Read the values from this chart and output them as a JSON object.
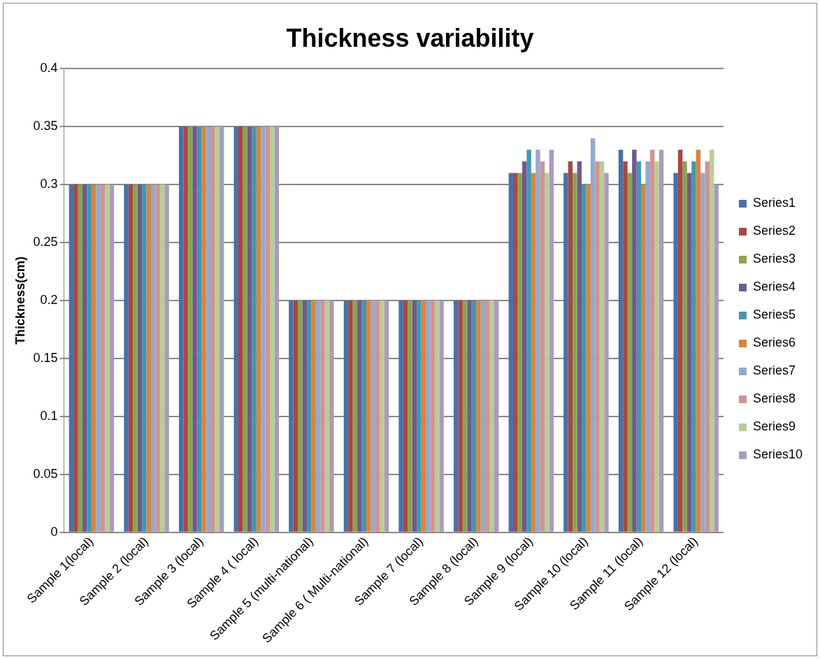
{
  "chart_data": {
    "type": "bar",
    "title": "Thickness variability",
    "ylabel": "Thickness(cm)",
    "categories": [
      "Sample 1(local)",
      "Sample 2 (local)",
      "Sample 3 (local)",
      "Sample 4 ( local)",
      "Sample 5 (multi-national)",
      "Sample 6 ( Multi-national)",
      "Sample 7 (local)",
      "Sample 8 (local)",
      "Sample 9 (local)",
      "Sample 10 (local)",
      "Sample 11 (local)",
      "Sample 12 (local)"
    ],
    "series": [
      {
        "name": "Series1",
        "color": "#4572a7",
        "values": [
          0.3,
          0.3,
          0.35,
          0.35,
          0.2,
          0.2,
          0.2,
          0.2,
          0.31,
          0.31,
          0.33,
          0.31
        ]
      },
      {
        "name": "Series2",
        "color": "#aa4643",
        "values": [
          0.3,
          0.3,
          0.35,
          0.35,
          0.2,
          0.2,
          0.2,
          0.2,
          0.31,
          0.32,
          0.32,
          0.33
        ]
      },
      {
        "name": "Series3",
        "color": "#89a54e",
        "values": [
          0.3,
          0.3,
          0.35,
          0.35,
          0.2,
          0.2,
          0.2,
          0.2,
          0.31,
          0.31,
          0.31,
          0.32
        ]
      },
      {
        "name": "Series4",
        "color": "#71588f",
        "values": [
          0.3,
          0.3,
          0.35,
          0.35,
          0.2,
          0.2,
          0.2,
          0.2,
          0.32,
          0.32,
          0.33,
          0.31
        ]
      },
      {
        "name": "Series5",
        "color": "#4198af",
        "values": [
          0.3,
          0.3,
          0.35,
          0.35,
          0.2,
          0.2,
          0.2,
          0.2,
          0.33,
          0.3,
          0.32,
          0.32
        ]
      },
      {
        "name": "Series6",
        "color": "#db843d",
        "values": [
          0.3,
          0.3,
          0.35,
          0.35,
          0.2,
          0.2,
          0.2,
          0.2,
          0.31,
          0.3,
          0.3,
          0.33
        ]
      },
      {
        "name": "Series7",
        "color": "#93a9cf",
        "values": [
          0.3,
          0.3,
          0.35,
          0.35,
          0.2,
          0.2,
          0.2,
          0.2,
          0.33,
          0.34,
          0.32,
          0.31
        ]
      },
      {
        "name": "Series8",
        "color": "#d19392",
        "values": [
          0.3,
          0.3,
          0.35,
          0.35,
          0.2,
          0.2,
          0.2,
          0.2,
          0.32,
          0.32,
          0.33,
          0.32
        ]
      },
      {
        "name": "Series9",
        "color": "#b9cd96",
        "values": [
          0.3,
          0.3,
          0.35,
          0.35,
          0.2,
          0.2,
          0.2,
          0.2,
          0.31,
          0.32,
          0.32,
          0.33
        ]
      },
      {
        "name": "Series10",
        "color": "#a99bbd",
        "values": [
          0.3,
          0.3,
          0.35,
          0.35,
          0.2,
          0.2,
          0.2,
          0.2,
          0.33,
          0.31,
          0.33,
          0.3
        ]
      }
    ],
    "ylim": [
      0,
      0.4
    ],
    "yticks": [
      0,
      0.05,
      0.1,
      0.15,
      0.2,
      0.25,
      0.3,
      0.35,
      0.4
    ],
    "grid": "y",
    "legend": "right"
  }
}
